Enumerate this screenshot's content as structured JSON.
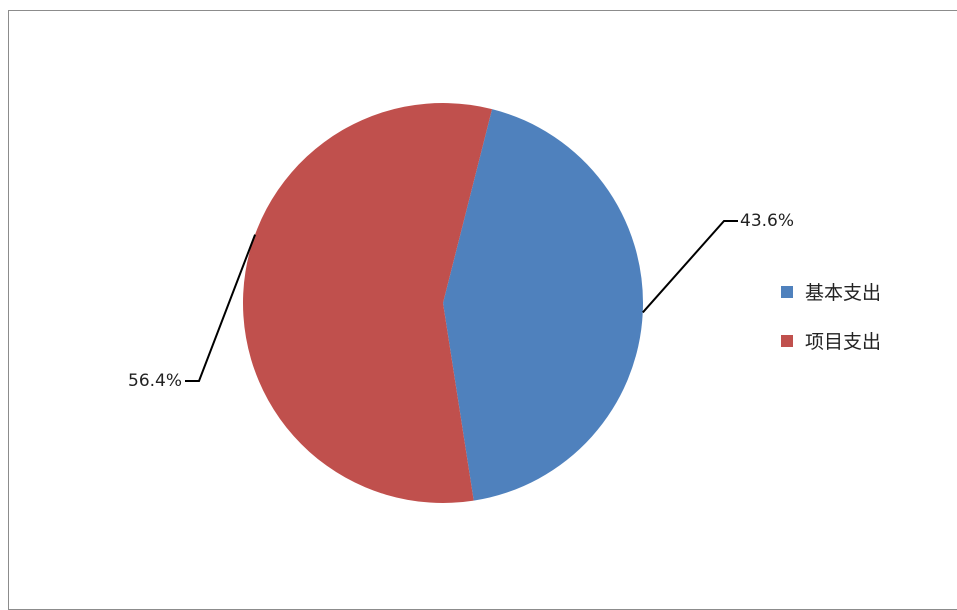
{
  "chart_data": {
    "type": "pie",
    "title": "",
    "categories": [
      "基本支出",
      "项目支出"
    ],
    "values": [
      43.6,
      56.4
    ],
    "labels": [
      "43.6%",
      "56.4%"
    ],
    "colors": [
      "#4F81BD",
      "#C0504D"
    ],
    "start_angle_deg": 14.2,
    "direction": "clockwise",
    "legend": {
      "position": "right",
      "items": [
        "基本支出",
        "项目支出"
      ]
    }
  }
}
